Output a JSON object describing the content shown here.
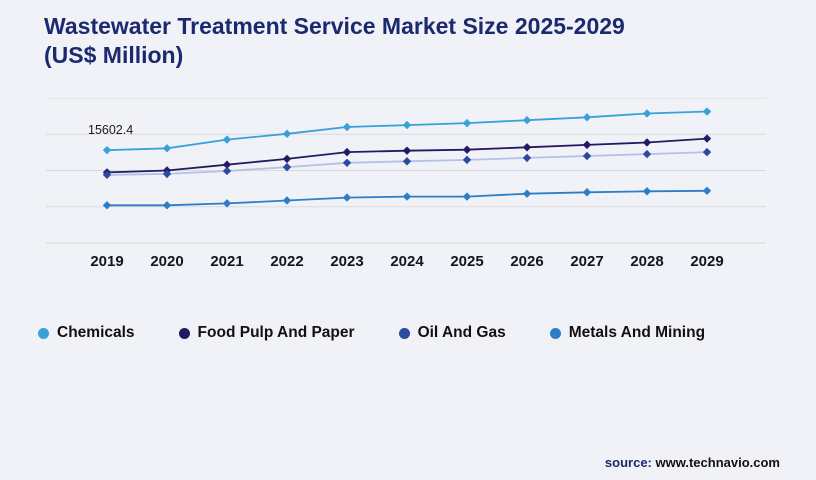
{
  "title": {
    "line1": "Wastewater Treatment Service Market Size 2025-2029",
    "line2": "(US$ Million)"
  },
  "annotation": {
    "text": "15602.4"
  },
  "source": {
    "prefix": "source:",
    "text": " www.technavio.com"
  },
  "chart_data": {
    "type": "line",
    "title": "Wastewater Treatment Service Market Size 2025-2029 (US$ Million)",
    "xlabel": "",
    "ylabel": "US$ Million",
    "x": [
      "2019",
      "2020",
      "2021",
      "2022",
      "2023",
      "2024",
      "2025",
      "2026",
      "2027",
      "2028",
      "2029"
    ],
    "ylim": [
      6000,
      21000
    ],
    "grid": true,
    "legend_position": "bottom",
    "annotation": {
      "series": "Chemicals",
      "x": "2019",
      "value": 15602.4,
      "label": "15602.4"
    },
    "series": [
      {
        "name": "Chemicals",
        "color": "#3aa0da",
        "values": [
          15602.4,
          15800,
          16700,
          17300,
          18000,
          18200,
          18400,
          18700,
          19000,
          19400,
          19600
        ]
      },
      {
        "name": "Food Pulp And Paper",
        "color": "#231a63",
        "values": [
          13300,
          13500,
          14100,
          14700,
          15400,
          15550,
          15650,
          15900,
          16150,
          16400,
          16800
        ]
      },
      {
        "name": "Oil And Gas",
        "color": "#2b4aa0",
        "line_color": "#b3c0e8",
        "values": [
          13050,
          13150,
          13450,
          13850,
          14300,
          14450,
          14600,
          14800,
          15000,
          15200,
          15400
        ]
      },
      {
        "name": "Metals And Mining",
        "color": "#2d7ec9",
        "values": [
          9900,
          9900,
          10100,
          10400,
          10700,
          10800,
          10800,
          11100,
          11250,
          11350,
          11400
        ]
      }
    ]
  }
}
